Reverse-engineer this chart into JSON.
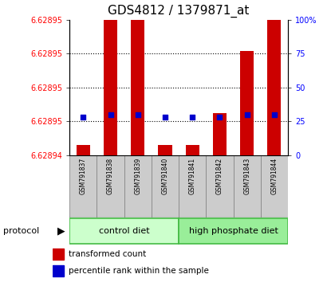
{
  "title": "GDS4812 / 1379871_at",
  "samples": [
    "GSM791837",
    "GSM791838",
    "GSM791839",
    "GSM791840",
    "GSM791841",
    "GSM791842",
    "GSM791843",
    "GSM791844"
  ],
  "group_labels": [
    "control diet",
    "high phosphate diet"
  ],
  "group_colors_light": [
    "#ccffcc",
    "#99ee99"
  ],
  "group_colors_border": [
    "#44bb44",
    "#44bb44"
  ],
  "transformed_count": [
    6.628941,
    6.62896,
    6.628958,
    6.628941,
    6.628941,
    6.628944,
    6.62895,
    6.628965
  ],
  "percentile_rank": [
    28,
    30,
    30,
    28,
    28,
    28,
    30,
    30
  ],
  "bar_color": "#cc0000",
  "dot_color": "#0000cc",
  "bar_width": 0.5,
  "y_min": 6.62894,
  "y_range": 1.3e-05,
  "right_ticks": [
    0,
    25,
    50,
    75,
    100
  ],
  "right_tick_labels": [
    "0",
    "25",
    "50",
    "75",
    "100%"
  ],
  "left_tick_labels": [
    "6.62894",
    "6.62895",
    "6.62895",
    "6.62895",
    "6.62895"
  ],
  "dotted_pcts": [
    25,
    50,
    75
  ],
  "title_fontsize": 11,
  "tick_fontsize": 7,
  "sample_fontsize": 5.5,
  "protocol_fontsize": 8,
  "legend_fontsize": 7.5
}
